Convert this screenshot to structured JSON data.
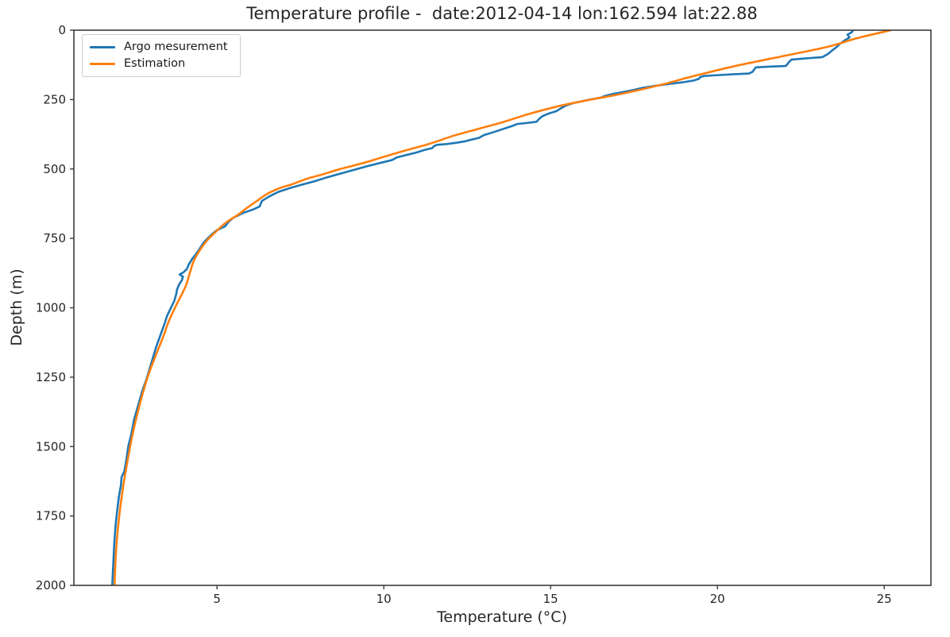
{
  "figure": {
    "title": "Temperature profile -  date:2012-04-14 lon:162.594 lat:22.88",
    "background": "#ffffff",
    "text_color": "#262626",
    "spine_color": "#3b3b3b"
  },
  "chart_data": {
    "type": "line",
    "title": "Temperature profile -  date:2012-04-14 lon:162.594 lat:22.88",
    "xlabel": "Temperature (°C)",
    "ylabel": "Depth (m)",
    "xlim": [
      0.71,
      26.4
    ],
    "ylim": [
      0,
      2000
    ],
    "y_inverted": true,
    "grid": false,
    "xticks": [
      5,
      10,
      15,
      20,
      25
    ],
    "yticks": [
      0,
      250,
      500,
      750,
      1000,
      1250,
      1500,
      1750,
      2000
    ],
    "legend": {
      "position": "upper-left",
      "entries": [
        "Argo mesurement",
        "Estimation"
      ]
    },
    "series": [
      {
        "name": "Argo mesurement",
        "color": "#1f77b4",
        "style": "jagged",
        "points_temp_depth": [
          [
            24.07,
            0
          ],
          [
            24.02,
            8
          ],
          [
            23.9,
            16
          ],
          [
            23.96,
            26
          ],
          [
            23.8,
            38
          ],
          [
            23.67,
            49
          ],
          [
            23.58,
            60
          ],
          [
            23.45,
            72
          ],
          [
            23.32,
            85
          ],
          [
            23.15,
            97
          ],
          [
            22.6,
            102
          ],
          [
            22.22,
            106
          ],
          [
            22.15,
            114
          ],
          [
            22.1,
            122
          ],
          [
            22.05,
            129
          ],
          [
            21.6,
            131
          ],
          [
            21.15,
            134
          ],
          [
            21.1,
            142
          ],
          [
            21.05,
            150
          ],
          [
            20.95,
            156
          ],
          [
            20.45,
            159
          ],
          [
            20.0,
            162
          ],
          [
            19.6,
            165
          ],
          [
            19.48,
            169
          ],
          [
            19.45,
            175
          ],
          [
            19.3,
            181
          ],
          [
            19.0,
            187
          ],
          [
            18.6,
            193
          ],
          [
            18.1,
            201
          ],
          [
            17.75,
            208
          ],
          [
            17.5,
            215
          ],
          [
            17.2,
            222
          ],
          [
            16.85,
            230
          ],
          [
            16.6,
            238
          ],
          [
            16.5,
            243
          ],
          [
            16.1,
            252
          ],
          [
            15.7,
            262
          ],
          [
            15.45,
            272
          ],
          [
            15.3,
            282
          ],
          [
            15.17,
            292
          ],
          [
            14.95,
            300
          ],
          [
            14.75,
            310
          ],
          [
            14.65,
            320
          ],
          [
            14.58,
            330
          ],
          [
            14.3,
            334
          ],
          [
            14.0,
            338
          ],
          [
            13.85,
            345
          ],
          [
            13.6,
            355
          ],
          [
            13.35,
            365
          ],
          [
            13.0,
            378
          ],
          [
            12.85,
            388
          ],
          [
            12.6,
            395
          ],
          [
            12.45,
            400
          ],
          [
            12.2,
            405
          ],
          [
            11.9,
            410
          ],
          [
            11.6,
            413
          ],
          [
            11.5,
            418
          ],
          [
            11.45,
            425
          ],
          [
            11.2,
            432
          ],
          [
            11.0,
            440
          ],
          [
            10.7,
            449
          ],
          [
            10.4,
            458
          ],
          [
            10.24,
            468
          ],
          [
            9.9,
            478
          ],
          [
            9.5,
            490
          ],
          [
            9.2,
            500
          ],
          [
            8.9,
            510
          ],
          [
            8.6,
            520
          ],
          [
            8.25,
            532
          ],
          [
            7.9,
            545
          ],
          [
            7.5,
            558
          ],
          [
            7.15,
            570
          ],
          [
            6.83,
            583
          ],
          [
            6.55,
            600
          ],
          [
            6.35,
            615
          ],
          [
            6.3,
            628
          ],
          [
            6.28,
            635
          ],
          [
            6.1,
            645
          ],
          [
            5.75,
            660
          ],
          [
            5.5,
            675
          ],
          [
            5.35,
            690
          ],
          [
            5.24,
            707
          ],
          [
            5.0,
            720
          ],
          [
            4.85,
            735
          ],
          [
            4.72,
            750
          ],
          [
            4.6,
            765
          ],
          [
            4.52,
            780
          ],
          [
            4.45,
            793
          ],
          [
            4.35,
            810
          ],
          [
            4.25,
            825
          ],
          [
            4.15,
            845
          ],
          [
            4.1,
            860
          ],
          [
            4.0,
            872
          ],
          [
            3.88,
            880
          ],
          [
            3.98,
            888
          ],
          [
            3.95,
            900
          ],
          [
            3.87,
            915
          ],
          [
            3.8,
            935
          ],
          [
            3.78,
            950
          ],
          [
            3.72,
            975
          ],
          [
            3.62,
            1000
          ],
          [
            3.5,
            1030
          ],
          [
            3.42,
            1060
          ],
          [
            3.3,
            1100
          ],
          [
            3.18,
            1140
          ],
          [
            3.08,
            1180
          ],
          [
            2.98,
            1220
          ],
          [
            2.88,
            1260
          ],
          [
            2.76,
            1300
          ],
          [
            2.64,
            1350
          ],
          [
            2.52,
            1400
          ],
          [
            2.44,
            1450
          ],
          [
            2.34,
            1500
          ],
          [
            2.28,
            1550
          ],
          [
            2.22,
            1590
          ],
          [
            2.14,
            1610
          ],
          [
            2.12,
            1640
          ],
          [
            2.06,
            1680
          ],
          [
            2.02,
            1720
          ],
          [
            1.98,
            1760
          ],
          [
            1.95,
            1800
          ],
          [
            1.92,
            1850
          ],
          [
            1.9,
            1900
          ],
          [
            1.88,
            1950
          ],
          [
            1.86,
            2000
          ]
        ]
      },
      {
        "name": "Estimation",
        "color": "#ff7f0e",
        "style": "smooth",
        "points_temp_depth": [
          [
            25.2,
            0
          ],
          [
            24.15,
            30
          ],
          [
            23.3,
            60
          ],
          [
            21.7,
            100
          ],
          [
            20.5,
            130
          ],
          [
            19.3,
            165
          ],
          [
            18.2,
            200
          ],
          [
            17.1,
            230
          ],
          [
            16.2,
            250
          ],
          [
            15.3,
            272
          ],
          [
            14.4,
            300
          ],
          [
            13.6,
            330
          ],
          [
            12.85,
            355
          ],
          [
            12.1,
            380
          ],
          [
            11.35,
            410
          ],
          [
            10.6,
            435
          ],
          [
            9.9,
            460
          ],
          [
            9.4,
            478
          ],
          [
            8.7,
            500
          ],
          [
            8.15,
            520
          ],
          [
            7.7,
            535
          ],
          [
            7.25,
            555
          ],
          [
            6.9,
            568
          ],
          [
            6.5,
            590
          ],
          [
            6.2,
            615
          ],
          [
            5.9,
            640
          ],
          [
            5.64,
            664
          ],
          [
            5.25,
            695
          ],
          [
            4.93,
            730
          ],
          [
            4.72,
            755
          ],
          [
            4.57,
            778
          ],
          [
            4.42,
            805
          ],
          [
            4.29,
            835
          ],
          [
            4.21,
            865
          ],
          [
            4.14,
            893
          ],
          [
            4.07,
            920
          ],
          [
            3.95,
            950
          ],
          [
            3.74,
            1000
          ],
          [
            3.55,
            1050
          ],
          [
            3.38,
            1107
          ],
          [
            3.14,
            1179
          ],
          [
            2.92,
            1250
          ],
          [
            2.68,
            1350
          ],
          [
            2.48,
            1450
          ],
          [
            2.32,
            1550
          ],
          [
            2.18,
            1650
          ],
          [
            2.07,
            1750
          ],
          [
            1.99,
            1850
          ],
          [
            1.95,
            1930
          ],
          [
            1.93,
            2000
          ]
        ]
      }
    ]
  }
}
